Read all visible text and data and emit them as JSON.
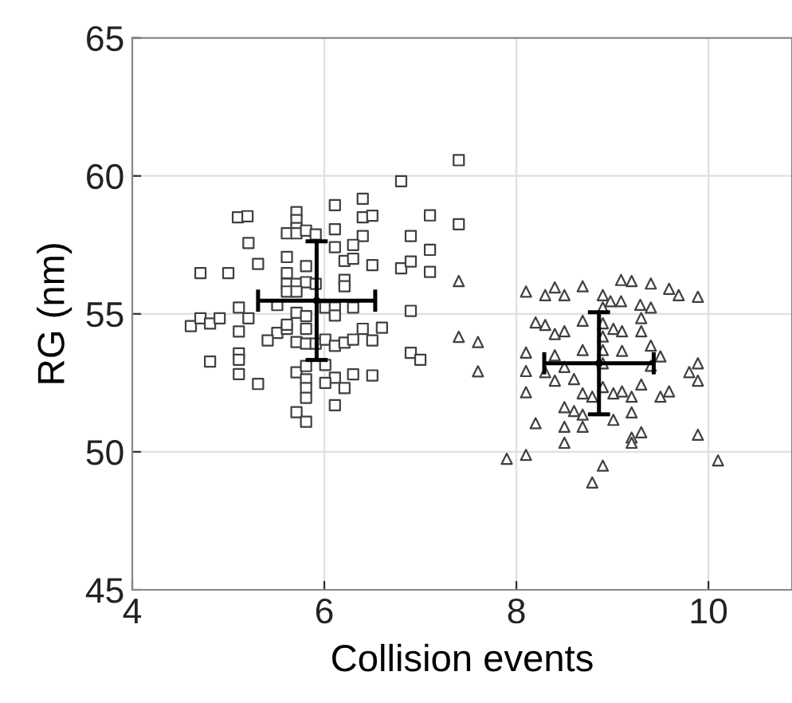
{
  "chart_data": {
    "type": "scatter",
    "xlabel": "Collision events",
    "ylabel": "RG (nm)",
    "xlim": [
      4,
      10.87
    ],
    "ylim": [
      45,
      65
    ],
    "xticks": [
      4,
      6,
      8,
      10
    ],
    "yticks": [
      45,
      50,
      55,
      60,
      65
    ],
    "grid": true,
    "series": [
      {
        "color": "#404040",
        "marker": "square",
        "x": [
          5.1,
          5.2,
          5.71,
          5.71,
          5.71,
          5.61,
          5.71,
          5.81,
          5.91,
          5.21,
          5.61,
          5.81,
          5.31,
          4.71,
          5.0,
          5.61,
          5.61,
          5.71,
          5.81,
          5.91,
          5.61,
          5.71,
          5.11,
          5.51,
          5.21,
          5.71,
          5.81,
          4.61,
          4.71,
          4.81,
          4.91,
          5.11,
          5.51,
          5.61,
          5.61,
          5.71,
          5.81,
          5.81,
          5.91,
          5.41,
          4.81,
          5.11,
          5.11,
          5.11,
          5.31,
          5.71,
          5.81,
          5.81,
          5.81,
          5.81,
          5.71,
          5.81,
          7.4,
          6.8,
          6.4,
          6.11,
          6.4,
          6.5,
          7.1,
          7.4,
          6.11,
          6.4,
          6.9,
          6.11,
          6.3,
          7.1,
          6.21,
          6.3,
          6.5,
          6.8,
          6.9,
          7.1,
          6.21,
          6.21,
          6.01,
          6.11,
          6.3,
          6.11,
          6.9,
          6.4,
          6.6,
          6.01,
          6.11,
          6.21,
          6.3,
          6.5,
          6.9,
          7.0,
          6.01,
          6.11,
          6.21,
          6.3,
          6.5,
          6.01,
          6.11
        ],
        "values": [
          58.5,
          58.54,
          58.69,
          58.4,
          58.11,
          57.92,
          57.92,
          58.02,
          57.88,
          57.57,
          57.06,
          56.73,
          56.81,
          56.48,
          56.48,
          56.48,
          56.09,
          56.09,
          56.15,
          56.09,
          55.81,
          55.81,
          55.23,
          55.32,
          54.84,
          55.04,
          54.92,
          54.56,
          54.84,
          54.65,
          54.84,
          54.36,
          54.31,
          54.46,
          54.61,
          53.98,
          54.46,
          53.92,
          53.92,
          54.04,
          53.27,
          53.57,
          53.34,
          52.82,
          52.46,
          52.88,
          53.11,
          52.63,
          52.31,
          51.96,
          51.44,
          51.09,
          60.57,
          59.81,
          59.17,
          58.94,
          58.5,
          58.56,
          58.57,
          58.25,
          58.07,
          57.82,
          57.82,
          57.42,
          57.5,
          57.32,
          56.92,
          57.0,
          56.77,
          56.65,
          56.9,
          56.52,
          56.23,
          56.0,
          55.23,
          55.23,
          55.23,
          54.94,
          55.11,
          54.46,
          54.5,
          54.07,
          53.84,
          53.96,
          54.07,
          54.04,
          53.59,
          53.34,
          53.15,
          52.69,
          52.31,
          52.81,
          52.77,
          52.5,
          51.69
        ]
      },
      {
        "color": "#404040",
        "marker": "triangle",
        "x": [
          7.4,
          7.4,
          7.6,
          7.6,
          8.1,
          8.3,
          8.4,
          8.5,
          8.69,
          8.9,
          9.09,
          9.2,
          9.4,
          9.59,
          9.69,
          9.89,
          8.98,
          9.09,
          9.29,
          9.4,
          8.9,
          9.3,
          8.2,
          8.3,
          8.4,
          8.5,
          8.69,
          8.9,
          9.01,
          9.1,
          9.3,
          9.4,
          8.9,
          8.9,
          8.1,
          8.4,
          8.69,
          9.1,
          9.5,
          8.1,
          8.3,
          8.5,
          8.6,
          8.4,
          8.9,
          9.4,
          9.8,
          9.89,
          9.89,
          8.1,
          8.69,
          8.79,
          8.9,
          9.01,
          9.1,
          9.2,
          9.3,
          9.5,
          9.59,
          8.5,
          8.6,
          8.69,
          8.2,
          8.5,
          8.69,
          9.01,
          9.2,
          8.5,
          9.2,
          9.2,
          9.3,
          9.89,
          7.9,
          8.1,
          8.9,
          8.79,
          10.1
        ],
        "values": [
          56.19,
          54.17,
          53.98,
          52.92,
          55.81,
          55.68,
          55.96,
          55.68,
          56.0,
          55.68,
          56.23,
          56.19,
          56.1,
          55.91,
          55.68,
          55.62,
          55.46,
          55.46,
          55.33,
          55.23,
          55.23,
          54.85,
          54.69,
          54.6,
          54.27,
          54.37,
          54.75,
          54.66,
          54.46,
          54.37,
          54.37,
          53.85,
          54.18,
          53.69,
          53.6,
          53.5,
          53.69,
          53.66,
          53.46,
          52.93,
          52.89,
          53.08,
          52.64,
          52.58,
          53.21,
          53.12,
          52.89,
          53.21,
          52.58,
          52.16,
          52.12,
          52.0,
          52.35,
          52.12,
          52.19,
          52.0,
          52.44,
          52.0,
          52.19,
          51.62,
          51.48,
          51.35,
          51.04,
          50.91,
          50.91,
          51.16,
          51.43,
          50.33,
          50.52,
          50.33,
          50.71,
          50.62,
          49.75,
          49.89,
          49.5,
          48.89,
          49.69
        ]
      },
      {
        "color": "#000000",
        "x": [
          5.92
        ],
        "values": [
          55.48
        ],
        "errors": [
          2.15
        ],
        "xerrors": [
          0.61
        ]
      },
      {
        "color": "#000000",
        "x": [
          8.86
        ],
        "values": [
          53.21
        ],
        "errors": [
          1.85
        ],
        "xerrors": [
          0.57
        ]
      }
    ]
  }
}
